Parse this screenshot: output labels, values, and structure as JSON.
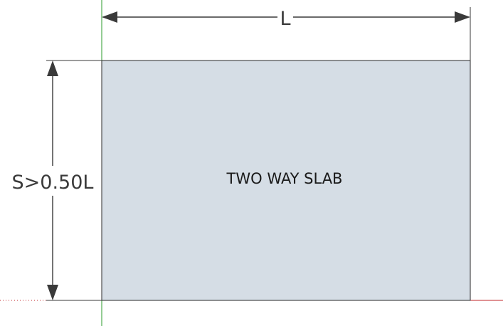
{
  "diagram": {
    "slab_label": "TWO WAY SLAB",
    "width_dimension_label": "L",
    "height_dimension_label": "S>0.50L"
  },
  "colors": {
    "slab_fill": "#d5dde5",
    "slab_outline": "#2a2a2a",
    "dimension_line": "#3a3a3a",
    "green_axis": "#2a9a2a",
    "red_axis": "#c0262a"
  }
}
